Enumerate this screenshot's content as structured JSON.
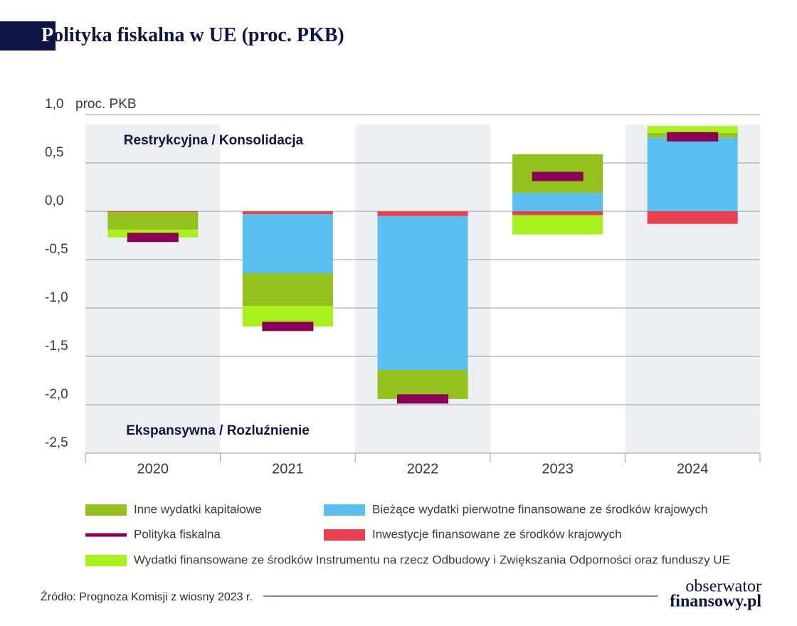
{
  "chart_data": {
    "type": "stacked-bar",
    "title": "Polityka fiskalna w UE (proc. PKB)",
    "ylabel": "proc. PKB",
    "annotations": [
      "Restrykcyjna / Konsolidacja",
      "Ekspansywna / Rozluźnienie"
    ],
    "categories": [
      "2020",
      "2021",
      "2022",
      "2023",
      "2024"
    ],
    "series": [
      {
        "name": "Inwestycje finansowane ze środków krajowych",
        "color": "#e8414f",
        "values": [
          -0.01,
          -0.03,
          -0.05,
          -0.04,
          -0.13
        ]
      },
      {
        "name": "Bieżące wydatki pierwotne finansowane ze środków krajowych",
        "color": "#5bc0f0",
        "values": [
          0,
          -0.61,
          -1.59,
          0.19,
          0.76
        ]
      },
      {
        "name": "Inne wydatki kapitałowe",
        "color": "#95c11f",
        "values": [
          -0.18,
          -0.34,
          -0.3,
          0.4,
          0.05
        ]
      },
      {
        "name": "Wydatki finansowane ze środków Instrumentu na rzecz Odbudowy i Zwiększania Odporności oraz funduszy UE",
        "color": "#a8f01e",
        "values": [
          -0.08,
          -0.21,
          0,
          -0.2,
          0.07
        ]
      },
      {
        "name": "Polityka fiskalna",
        "color": "#8b0057",
        "type": "marker",
        "values": [
          -0.27,
          -1.19,
          -1.94,
          0.36,
          0.77
        ]
      }
    ],
    "ylim": [
      -2.5,
      1.0
    ],
    "yticks": [
      {
        "value": 1.0,
        "label": "1,0"
      },
      {
        "value": 0.5,
        "label": "0,5"
      },
      {
        "value": 0,
        "label": "0,0"
      },
      {
        "value": -0.5,
        "label": "-0,5"
      },
      {
        "value": -1.0,
        "label": "-1,0"
      },
      {
        "value": -1.5,
        "label": "-1,5"
      },
      {
        "value": -2.0,
        "label": "-2,0"
      },
      {
        "value": -2.5,
        "label": "-2,5"
      }
    ],
    "grid": true,
    "source": "Źródło: Prognoza Komisji z wiosny 2023 r.",
    "logo": [
      "obserwator",
      "finansowy.pl"
    ]
  }
}
